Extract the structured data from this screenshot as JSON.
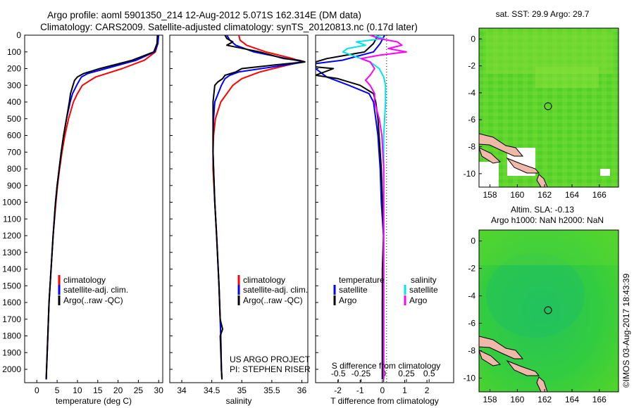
{
  "header": {
    "title_line1": "Argo profile: aoml 5901350_214 12-Aug-2012 5.071S 162.314E (DM data)",
    "title_line2": "Climatology: CARS2009. Satellite-adjusted climatology: synTS_20120813.nc (0.17d later)"
  },
  "colors": {
    "climatology": "#ff0000",
    "satellite": "#0000ff",
    "argo": "#000000",
    "sat_salinity": "#00e5e5",
    "argo_salinity": "#ff00ff"
  },
  "panels": {
    "depth_ticks": [
      "0",
      "100",
      "200",
      "300",
      "400",
      "500",
      "600",
      "700",
      "800",
      "900",
      "1000",
      "1100",
      "1200",
      "1300",
      "1400",
      "1500",
      "1600",
      "1700",
      "1800",
      "1900",
      "2000"
    ],
    "temperature": {
      "xlabel": "temperature (deg C)",
      "xticks": [
        "0",
        "5",
        "10",
        "15",
        "20",
        "25",
        "30"
      ],
      "legend": [
        "climatology",
        "satellite-adj. clim.",
        "Argo(..raw -QC)"
      ]
    },
    "salinity": {
      "xlabel": "salinity",
      "xticks": [
        "34",
        "34.5",
        "35",
        "35.5",
        "36"
      ],
      "legend": [
        "climatology",
        "satellite-adj. clim.",
        "Argo(..raw -QC)"
      ],
      "credit1": "US ARGO PROJECT",
      "credit2": "PI: STEPHEN RISER"
    },
    "difference": {
      "xlabel": "T difference from climatology",
      "xticks": [
        "-2",
        "-1",
        "0",
        "1",
        "2"
      ],
      "top_label": "S difference from climatology",
      "top_ticks": [
        "-0.5",
        "-0.25",
        "0",
        "0.25",
        "0.5"
      ],
      "legend_temp_title": "temperature",
      "legend_sal_title": "salinity",
      "legend_temp_items": [
        "satellite",
        "Argo"
      ],
      "legend_sal_items": [
        "satellite",
        "Argo"
      ]
    },
    "map_sst": {
      "title": "sat. SST: 29.9 Argo: 29.7",
      "xticks": [
        "158",
        "160",
        "162",
        "164",
        "166"
      ],
      "yticks": [
        "0",
        "-2",
        "-4",
        "-6",
        "-8",
        "-10"
      ]
    },
    "map_sla": {
      "title1": "Altim. SLA: -0.13",
      "title2": "Argo h1000: NaN h2000: NaN",
      "xticks": [
        "158",
        "160",
        "162",
        "164",
        "166"
      ],
      "yticks": [
        "0",
        "-2",
        "-4",
        "-6",
        "-8",
        "-10"
      ]
    },
    "footer_vertical": "©IMOS 03-Aug-2017 18:43:39"
  },
  "chart_data": [
    {
      "type": "line",
      "xlabel": "temperature (deg C)",
      "ylabel": "",
      "xlim": [
        -3,
        31
      ],
      "ylim": [
        2080,
        0
      ],
      "series": [
        {
          "name": "climatology",
          "depth": [
            0,
            50,
            100,
            150,
            200,
            250,
            300,
            350,
            400,
            500,
            600,
            700,
            800,
            900,
            1000,
            1200,
            1400,
            1600,
            1800,
            2000,
            2060
          ],
          "values": [
            29.9,
            29.8,
            29.2,
            26.5,
            21.0,
            14.5,
            11.2,
            10.0,
            9.0,
            7.8,
            6.9,
            6.2,
            5.6,
            5.1,
            4.7,
            4.0,
            3.5,
            3.0,
            2.7,
            2.4,
            2.3
          ]
        },
        {
          "name": "satellite-adj. clim.",
          "depth": [
            0,
            50,
            100,
            150,
            200,
            230,
            250,
            270,
            300,
            350,
            400,
            500,
            600,
            700,
            800,
            900,
            1000,
            1200,
            1400,
            1600,
            1800,
            2000,
            2060
          ],
          "values": [
            30.0,
            29.8,
            29.0,
            24.5,
            17.0,
            12.5,
            11.0,
            10.5,
            9.8,
            8.8,
            8.2,
            7.3,
            6.6,
            6.0,
            5.5,
            5.0,
            4.6,
            4.0,
            3.5,
            3.0,
            2.7,
            2.4,
            2.3
          ]
        },
        {
          "name": "Argo(..raw -QC)",
          "depth": [
            0,
            50,
            100,
            150,
            200,
            230,
            250,
            270,
            300,
            350,
            400,
            500,
            600,
            700,
            800,
            900,
            1000,
            1200,
            1400,
            1600,
            1800,
            2000,
            2060
          ],
          "values": [
            29.7,
            29.6,
            28.8,
            23.5,
            15.5,
            11.5,
            10.0,
            9.3,
            8.9,
            8.3,
            8.0,
            7.3,
            6.6,
            6.0,
            5.5,
            5.0,
            4.6,
            4.0,
            3.5,
            3.0,
            2.7,
            2.4,
            2.3
          ]
        }
      ]
    },
    {
      "type": "line",
      "xlabel": "salinity",
      "ylabel": "",
      "xlim": [
        33.8,
        36.1
      ],
      "ylim": [
        2080,
        0
      ],
      "series": [
        {
          "name": "climatology",
          "depth": [
            0,
            30,
            60,
            100,
            140,
            160,
            180,
            220,
            260,
            300,
            400,
            500,
            600,
            700,
            800,
            1000,
            1200,
            1500,
            1800,
            2000,
            2060
          ],
          "values": [
            34.95,
            34.97,
            35.08,
            35.4,
            35.85,
            36.0,
            35.75,
            35.3,
            35.0,
            34.85,
            34.65,
            34.56,
            34.53,
            34.52,
            34.52,
            34.55,
            34.58,
            34.62,
            34.65,
            34.66,
            34.67
          ]
        },
        {
          "name": "satellite-adj. clim.",
          "depth": [
            0,
            30,
            60,
            100,
            140,
            160,
            180,
            220,
            240,
            260,
            300,
            400,
            500,
            600,
            700,
            800,
            1000,
            1200,
            1500,
            1800,
            2000,
            2060
          ],
          "values": [
            34.75,
            34.8,
            34.9,
            35.2,
            35.75,
            36.05,
            35.7,
            34.95,
            34.8,
            34.72,
            34.66,
            34.55,
            34.53,
            34.52,
            34.52,
            34.53,
            34.55,
            34.58,
            34.62,
            34.65,
            34.66,
            34.67
          ]
        },
        {
          "name": "Argo(..raw -QC)",
          "depth": [
            0,
            20,
            40,
            60,
            100,
            140,
            150,
            160,
            180,
            200,
            220,
            240,
            260,
            280,
            300,
            400,
            500,
            600,
            700,
            800,
            1000,
            1200,
            1500,
            1700,
            1760,
            1800,
            2000,
            2060
          ],
          "values": [
            34.72,
            34.75,
            34.85,
            34.75,
            35.3,
            35.7,
            35.95,
            36.05,
            35.5,
            35.0,
            34.9,
            34.72,
            34.68,
            34.6,
            34.55,
            34.52,
            34.52,
            34.52,
            34.52,
            34.53,
            34.55,
            34.58,
            34.62,
            34.64,
            34.68,
            34.64,
            34.66,
            34.67
          ]
        }
      ]
    },
    {
      "type": "line",
      "xlabel": "T difference from climatology",
      "ylabel": "",
      "xlim": [
        -3,
        3.2
      ],
      "ylim": [
        2080,
        0
      ],
      "series": [
        {
          "name": "temperature satellite",
          "unit": "T",
          "depth": [
            0,
            50,
            100,
            150,
            170,
            200,
            250,
            300,
            350,
            400,
            500,
            600,
            700,
            800,
            1000,
            1200,
            1400,
            1600,
            1800,
            2000,
            2060
          ],
          "values": [
            0.1,
            -0.1,
            -0.4,
            -1.8,
            -3.0,
            -3.0,
            -2.5,
            -1.5,
            -0.6,
            -0.4,
            -0.3,
            -0.2,
            -0.15,
            -0.1,
            -0.05,
            0.05,
            0.05,
            0.0,
            0.0,
            0.0,
            0.0
          ]
        },
        {
          "name": "temperature Argo",
          "unit": "T",
          "depth": [
            0,
            50,
            100,
            140,
            160,
            190,
            200,
            240,
            260,
            300,
            350,
            400,
            500,
            600,
            700,
            800,
            1000,
            1200,
            1400,
            1600,
            1800,
            2000,
            2060
          ],
          "values": [
            -0.2,
            -0.4,
            -0.8,
            -2.5,
            -3.0,
            -3.0,
            -2.2,
            -3.0,
            -2.0,
            -1.0,
            -0.4,
            -0.3,
            -0.2,
            -0.15,
            -0.1,
            -0.05,
            0.0,
            0.05,
            0.0,
            0.0,
            0.0,
            0.0,
            0.0
          ]
        },
        {
          "name": "salinity satellite",
          "unit": "S",
          "depth": [
            0,
            20,
            40,
            60,
            80,
            100,
            130,
            160,
            200,
            250,
            300,
            400,
            600,
            800,
            1000,
            1400,
            1800,
            2060
          ],
          "values": [
            -0.1,
            0.0,
            -0.3,
            -0.2,
            -0.4,
            -0.45,
            -0.3,
            -0.15,
            -0.05,
            0.0,
            0.02,
            0.02,
            0.0,
            0.0,
            0.0,
            0.0,
            0.0,
            0.0
          ]
        },
        {
          "name": "salinity Argo",
          "unit": "S",
          "depth": [
            0,
            20,
            40,
            60,
            80,
            100,
            120,
            140,
            160,
            200,
            240,
            270,
            300,
            350,
            400,
            500,
            600,
            800,
            1000,
            1400,
            1800,
            2060
          ],
          "values": [
            -0.15,
            -0.05,
            0.15,
            0.2,
            0.05,
            0.25,
            -0.05,
            -0.25,
            -0.15,
            -0.1,
            -0.15,
            -0.2,
            -0.15,
            -0.1,
            -0.1,
            -0.05,
            -0.02,
            0.0,
            0.0,
            0.0,
            0.0,
            0.0
          ]
        }
      ],
      "top_axis": {
        "label": "S difference from climatology",
        "range": [
          -0.75,
          0.77
        ]
      }
    },
    {
      "type": "heatmap",
      "title": "sat. SST: 29.9 Argo: 29.7",
      "xlim": [
        157.2,
        167.4
      ],
      "ylim": [
        -11,
        0.8
      ],
      "float_position": {
        "lon": 162.314,
        "lat": -5.071
      }
    },
    {
      "type": "heatmap",
      "title": "Altim. SLA: -0.13",
      "subtitle": "Argo h1000: NaN h2000: NaN",
      "xlim": [
        157.2,
        167.4
      ],
      "ylim": [
        -11,
        0.8
      ],
      "float_position": {
        "lon": 162.314,
        "lat": -5.071
      }
    }
  ]
}
